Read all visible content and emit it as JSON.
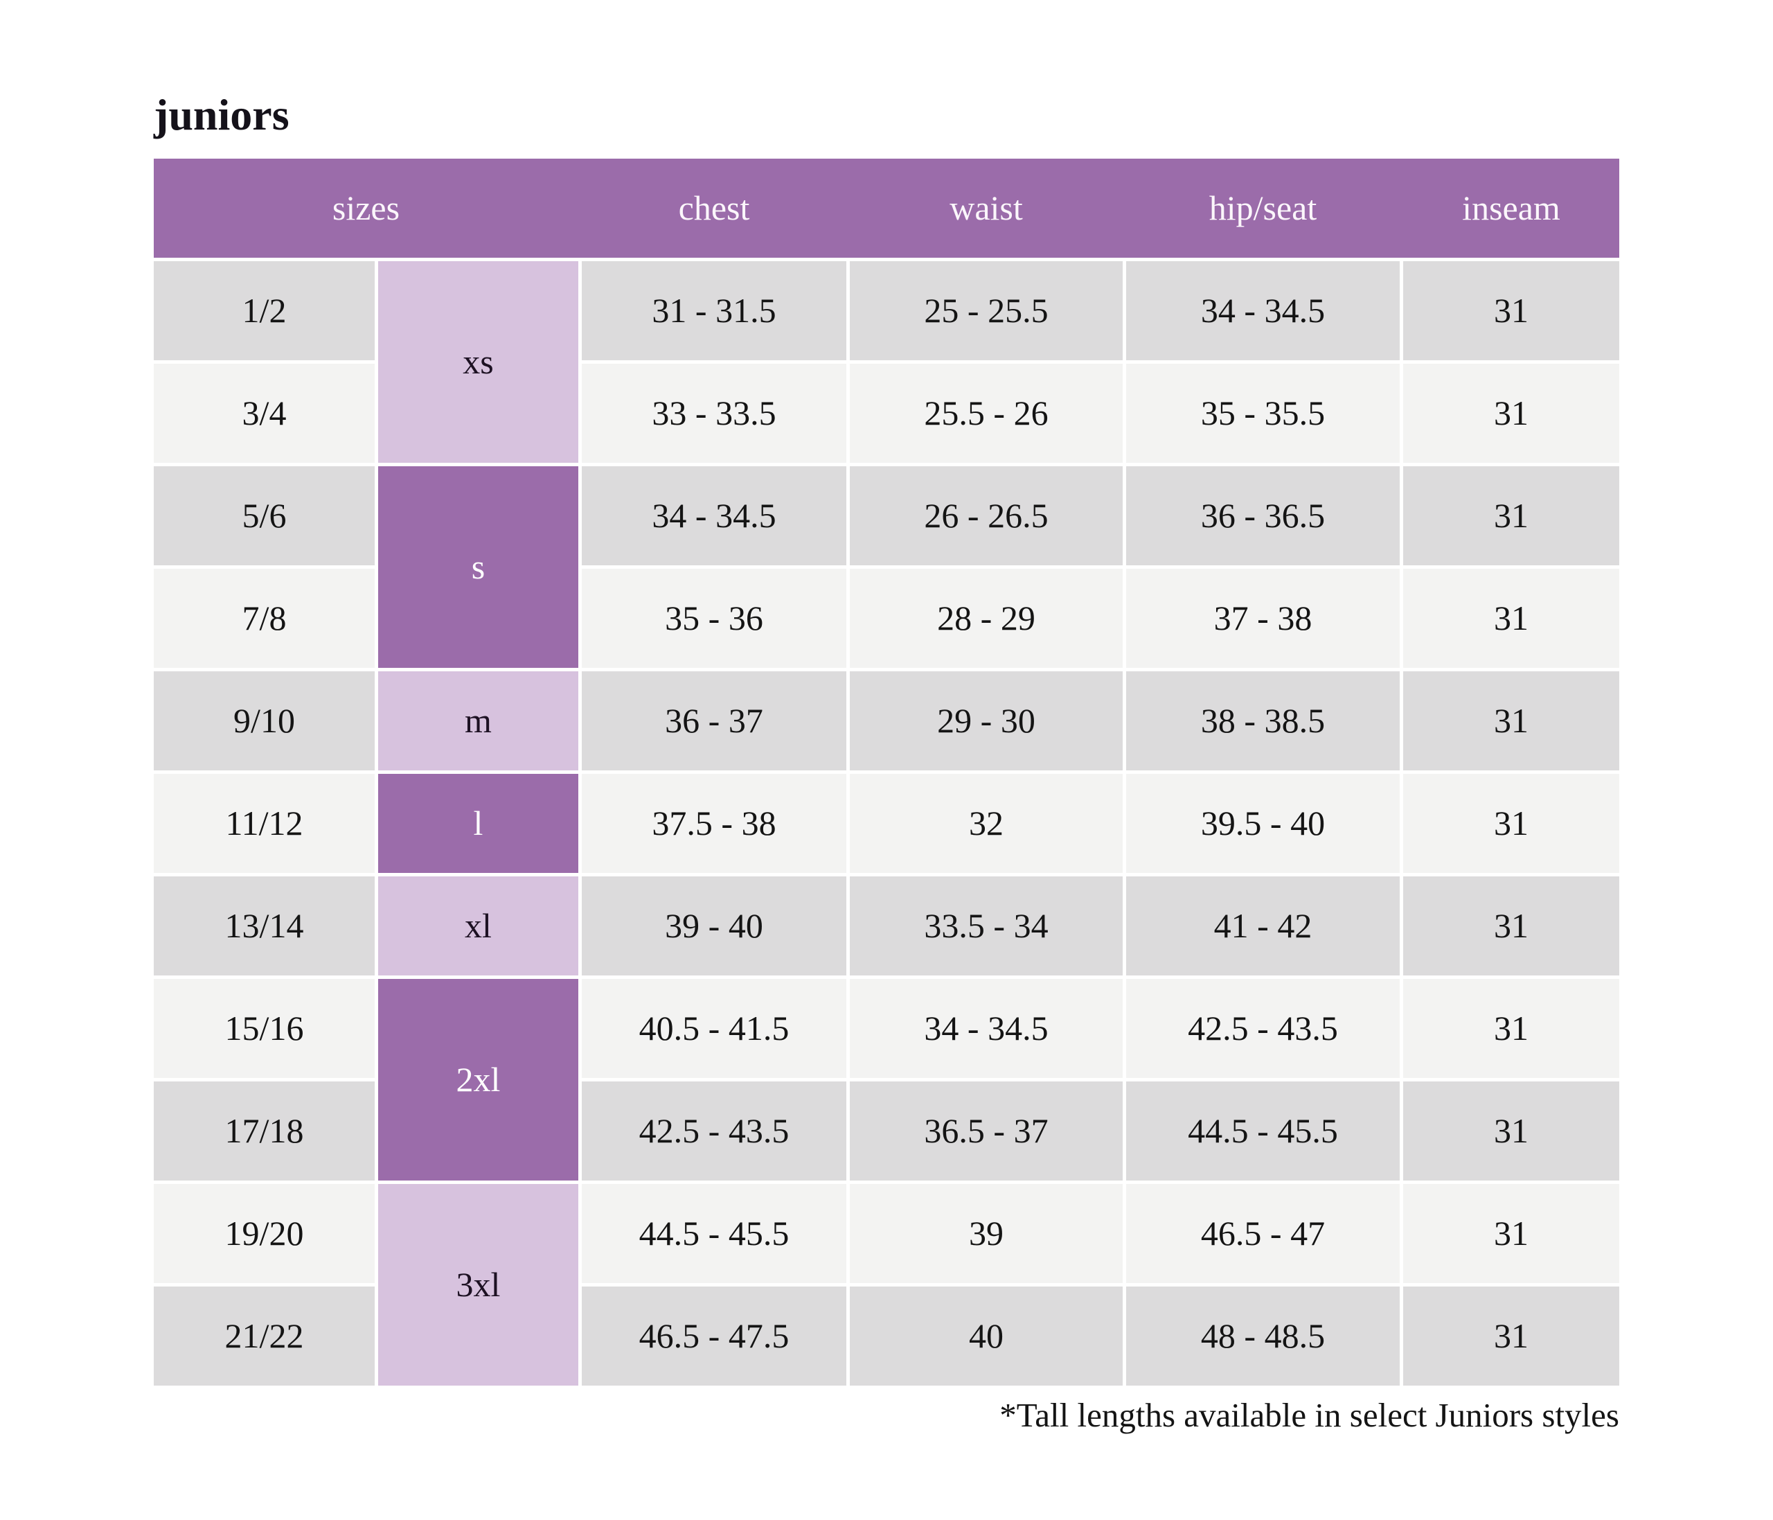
{
  "page": {
    "title": "juniors",
    "footnote": "*Tall lengths available in select Juniors styles"
  },
  "colors": {
    "header_purple": "#9b6caa",
    "letter_dark_purple": "#9b6caa",
    "letter_light_purple": "#d7c2de",
    "row_gray": "#dcdbdc",
    "row_light": "#f3f3f2",
    "header_text": "#fbf6fb",
    "body_text": "#141414"
  },
  "table": {
    "headers": {
      "sizes": "sizes",
      "chest": "chest",
      "waist": "waist",
      "hip_seat": "hip/seat",
      "inseam": "inseam"
    },
    "size_groups": [
      {
        "label": "xs",
        "rows_spanned": 2,
        "shade": "light"
      },
      {
        "label": "s",
        "rows_spanned": 2,
        "shade": "dark"
      },
      {
        "label": "m",
        "rows_spanned": 1,
        "shade": "light"
      },
      {
        "label": "l",
        "rows_spanned": 1,
        "shade": "dark"
      },
      {
        "label": "xl",
        "rows_spanned": 1,
        "shade": "light"
      },
      {
        "label": "2xl",
        "rows_spanned": 2,
        "shade": "dark"
      },
      {
        "label": "3xl",
        "rows_spanned": 2,
        "shade": "light"
      }
    ],
    "rows": [
      {
        "size": "1/2",
        "chest": "31 - 31.5",
        "waist": "25 - 25.5",
        "hip_seat": "34 - 34.5",
        "inseam": "31"
      },
      {
        "size": "3/4",
        "chest": "33 - 33.5",
        "waist": "25.5 - 26",
        "hip_seat": "35 - 35.5",
        "inseam": "31"
      },
      {
        "size": "5/6",
        "chest": "34 - 34.5",
        "waist": "26 - 26.5",
        "hip_seat": "36 - 36.5",
        "inseam": "31"
      },
      {
        "size": "7/8",
        "chest": "35 - 36",
        "waist": "28 - 29",
        "hip_seat": "37 - 38",
        "inseam": "31"
      },
      {
        "size": "9/10",
        "chest": "36 - 37",
        "waist": "29 - 30",
        "hip_seat": "38 - 38.5",
        "inseam": "31"
      },
      {
        "size": "11/12",
        "chest": "37.5 - 38",
        "waist": "32",
        "hip_seat": "39.5 - 40",
        "inseam": "31"
      },
      {
        "size": "13/14",
        "chest": "39 - 40",
        "waist": "33.5 - 34",
        "hip_seat": "41 - 42",
        "inseam": "31"
      },
      {
        "size": "15/16",
        "chest": "40.5 - 41.5",
        "waist": "34 - 34.5",
        "hip_seat": "42.5 - 43.5",
        "inseam": "31"
      },
      {
        "size": "17/18",
        "chest": "42.5 - 43.5",
        "waist": "36.5 - 37",
        "hip_seat": "44.5 - 45.5",
        "inseam": "31"
      },
      {
        "size": "19/20",
        "chest": "44.5 - 45.5",
        "waist": "39",
        "hip_seat": "46.5 - 47",
        "inseam": "31"
      },
      {
        "size": "21/22",
        "chest": "46.5 - 47.5",
        "waist": "40",
        "hip_seat": "48 - 48.5",
        "inseam": "31"
      }
    ]
  }
}
